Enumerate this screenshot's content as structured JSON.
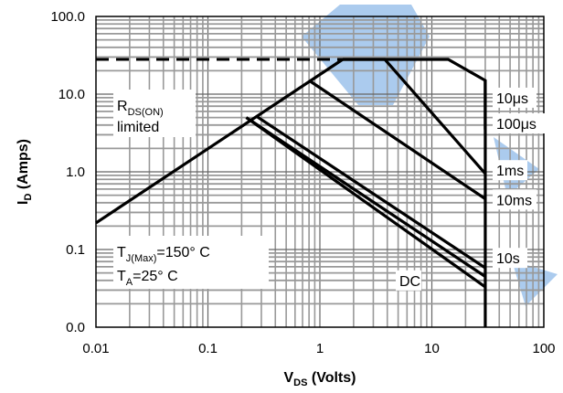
{
  "chart_data": {
    "type": "line",
    "x_scale": "log",
    "y_scale": "log",
    "xlim": [
      0.01,
      100
    ],
    "ylim_plot": [
      0.01,
      100
    ],
    "x_ticks": [
      {
        "v": 0.01,
        "label": "0.01"
      },
      {
        "v": 0.1,
        "label": "0.1"
      },
      {
        "v": 1,
        "label": "1"
      },
      {
        "v": 10,
        "label": "10"
      },
      {
        "v": 100,
        "label": "100"
      }
    ],
    "y_ticks": [
      {
        "v": 0.01,
        "label": "0.0"
      },
      {
        "v": 0.1,
        "label": "0.1"
      },
      {
        "v": 1,
        "label": "1.0"
      },
      {
        "v": 10,
        "label": "10.0"
      },
      {
        "v": 100,
        "label": "100.0"
      }
    ],
    "xlabel": {
      "main": "V",
      "sub": "DS",
      "rest": " (Volts)"
    },
    "ylabel": {
      "main": "I",
      "sub": "D",
      "rest": " (Amps)"
    },
    "annotations": {
      "rds": {
        "line1_main": "R",
        "line1_sub": "DS(ON)",
        "line2": "limited"
      },
      "tj": {
        "main": "T",
        "sub": "J(Max)",
        "rest": "=150° C"
      },
      "ta": {
        "main": "T",
        "sub": "A",
        "rest": "=25° C"
      }
    },
    "package_limit": {
      "x": [
        0.01,
        14
      ],
      "y": [
        28,
        28
      ],
      "style": "dashed"
    },
    "rds_limit": {
      "x": [
        0.01,
        1.6
      ],
      "y": [
        0.22,
        28
      ]
    },
    "vds_max": 30,
    "series": [
      {
        "name": "10μs",
        "label_y": 9,
        "x": [
          1.6,
          14,
          30,
          30
        ],
        "y": [
          28,
          28,
          15,
          3.5
        ]
      },
      {
        "name": "100μs",
        "label_y": 4.2,
        "x": [
          1.6,
          3.8,
          30
        ],
        "y": [
          28,
          28,
          0.95
        ]
      },
      {
        "name": "1ms",
        "label_y": 1.05,
        "x": [
          0.8,
          30
        ],
        "y": [
          15,
          0.45
        ]
      },
      {
        "name": "10ms",
        "label_y": 0.44,
        "x": [
          0.27,
          30
        ],
        "y": [
          5.2,
          0.058
        ]
      },
      {
        "name": "10s",
        "label_y": 0.078,
        "x": [
          0.24,
          30
        ],
        "y": [
          4.6,
          0.045
        ]
      },
      {
        "name": "DC",
        "label_y": 0.04,
        "x": [
          0.22,
          30
        ],
        "y": [
          5,
          0.033
        ]
      }
    ],
    "grid": true
  }
}
